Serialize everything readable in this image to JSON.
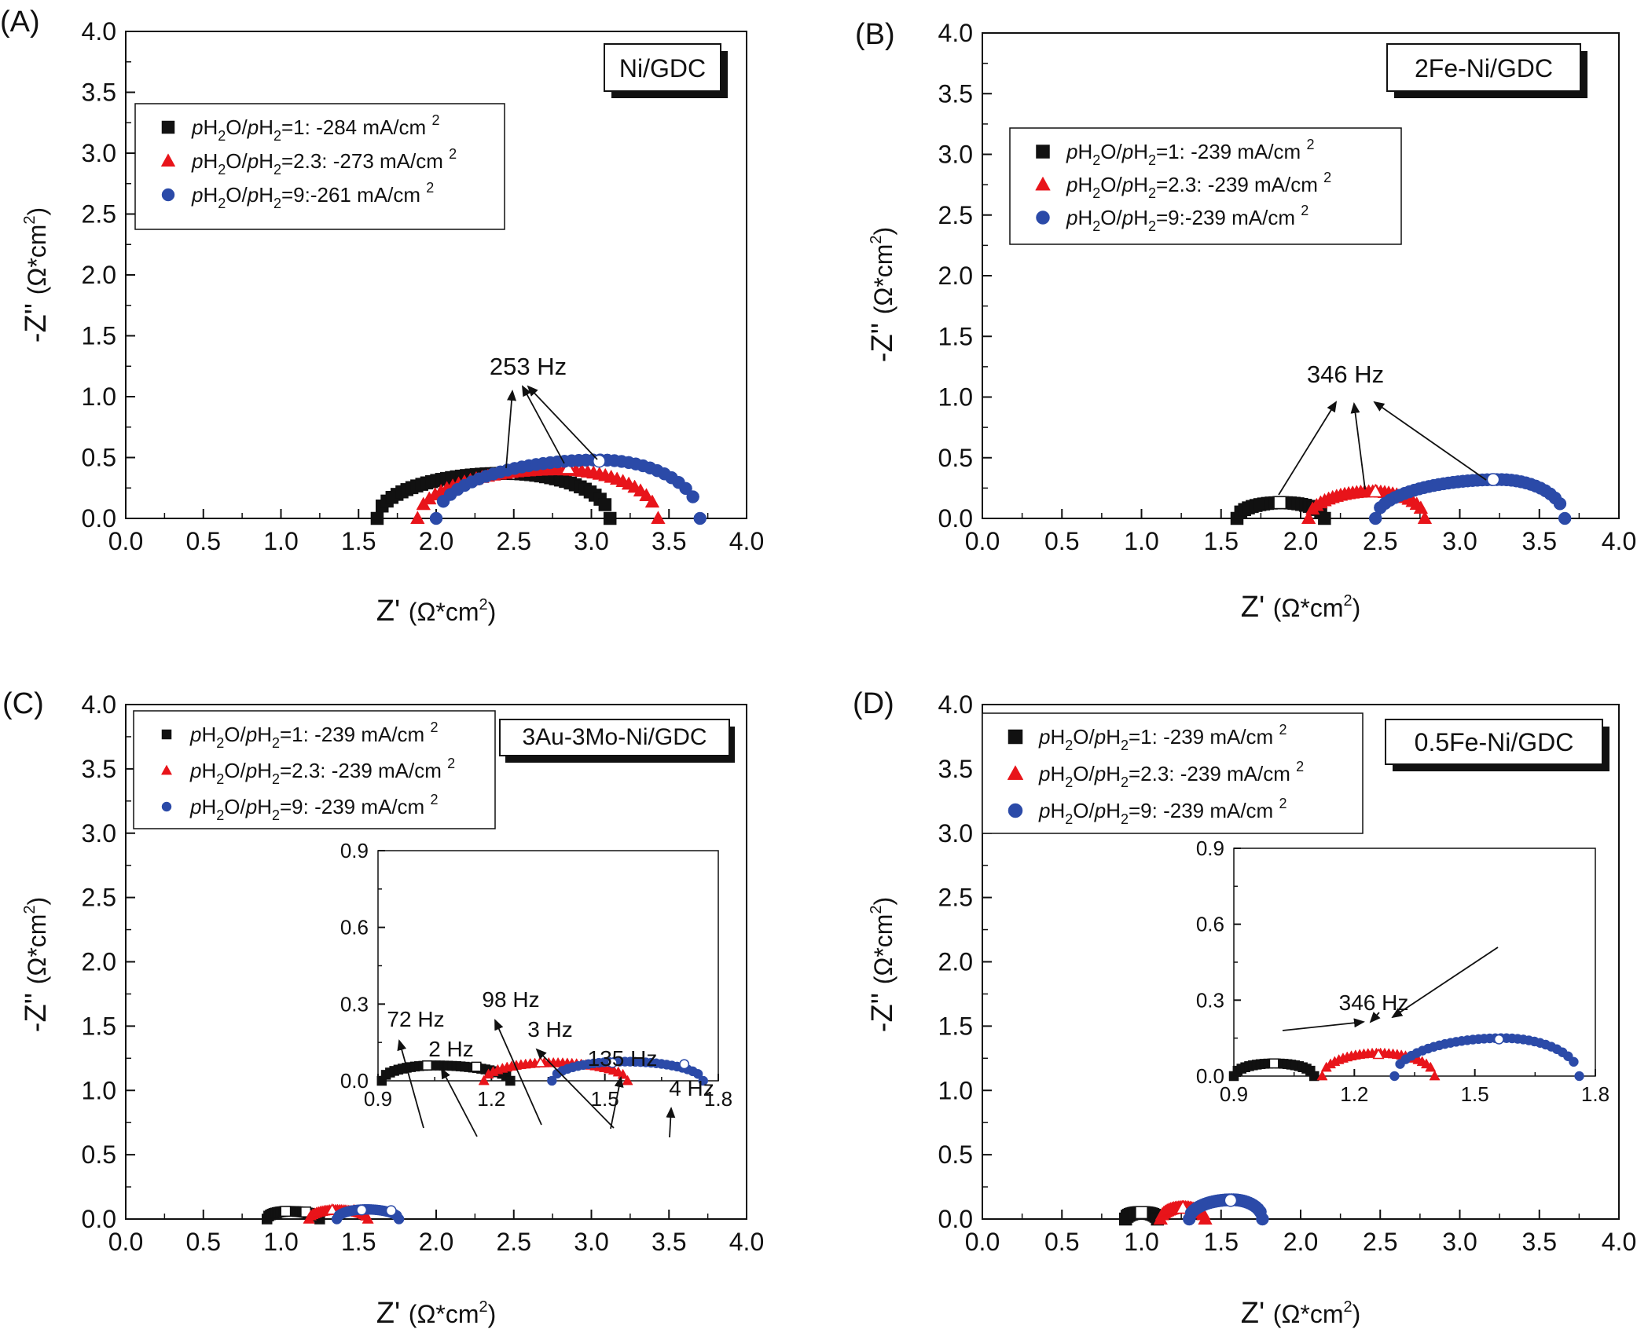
{
  "panels": [
    {
      "label": "(A)",
      "sample": "Ni/GDC",
      "sample_color": "#111111",
      "legend": [
        {
          "italic1": "p",
          "t1": "H",
          "s1": "2",
          "t2": "O/",
          "italic2": "p",
          "t3": "H",
          "s2": "2",
          "tail": "=1: -284 mA/cm ",
          "sup": "2",
          "marker": "square",
          "color": "#111111"
        },
        {
          "italic1": "p",
          "t1": "H",
          "s1": "2",
          "t2": "O/",
          "italic2": "p",
          "t3": "H",
          "s2": "2",
          "tail": "=2.3: -273 mA/cm ",
          "sup": "2",
          "marker": "triangle",
          "color": "#e8141a"
        },
        {
          "italic1": "p",
          "t1": "H",
          "s1": "2",
          "t2": "O/",
          "italic2": "p",
          "t3": "H",
          "s2": "2",
          "tail": "=9:-261 mA/cm ",
          "sup": "2",
          "marker": "circle",
          "color": "#2b4aa8"
        }
      ],
      "annotations": [
        {
          "text": "253 Hz"
        }
      ]
    },
    {
      "label": "(B)",
      "sample": "2Fe-Ni/GDC",
      "sample_color": "#e8141a",
      "legend": [
        {
          "italic1": "p",
          "t1": "H",
          "s1": "2",
          "t2": "O/",
          "italic2": "p",
          "t3": "H",
          "s2": "2",
          "tail": "=1: -239 mA/cm ",
          "sup": "2",
          "marker": "square",
          "color": "#111111"
        },
        {
          "italic1": "p",
          "t1": "H",
          "s1": "2",
          "t2": "O/",
          "italic2": "p",
          "t3": "H",
          "s2": "2",
          "tail": "=2.3: -239 mA/cm ",
          "sup": "2",
          "marker": "triangle",
          "color": "#e8141a"
        },
        {
          "italic1": "p",
          "t1": "H",
          "s1": "2",
          "t2": "O/",
          "italic2": "p",
          "t3": "H",
          "s2": "2",
          "tail": "=9:-239 mA/cm ",
          "sup": "2",
          "marker": "circle",
          "color": "#2b4aa8"
        }
      ],
      "annotations": [
        {
          "text": "346 Hz"
        }
      ]
    },
    {
      "label": "(C)",
      "sample": "3Au-3Mo-Ni/GDC",
      "sample_color": "#1a8a2e",
      "legend": [
        {
          "italic1": "p",
          "t1": "H",
          "s1": "2",
          "t2": "O/",
          "italic2": "p",
          "t3": "H",
          "s2": "2",
          "tail": "=1: -239 mA/cm ",
          "sup": "2",
          "marker": "square",
          "color": "#111111"
        },
        {
          "italic1": "p",
          "t1": "H",
          "s1": "2",
          "t2": "O/",
          "italic2": "p",
          "t3": "H",
          "s2": "2",
          "tail": "=2.3: -239 mA/cm ",
          "sup": "2",
          "marker": "triangle",
          "color": "#e8141a"
        },
        {
          "italic1": "p",
          "t1": "H",
          "s1": "2",
          "t2": "O/",
          "italic2": "p",
          "t3": "H",
          "s2": "2",
          "tail": "=9: -239 mA/cm ",
          "sup": "2",
          "marker": "circle",
          "color": "#2b4aa8"
        }
      ],
      "annotations": [
        {
          "text": "72 Hz"
        },
        {
          "text": "2 Hz"
        },
        {
          "text": "98 Hz"
        },
        {
          "text": "3 Hz"
        },
        {
          "text": "135 Hz"
        },
        {
          "text": "4 Hz"
        }
      ]
    },
    {
      "label": "(D)",
      "sample": "0.5Fe-Ni/GDC",
      "sample_color": "#f07a1a",
      "legend": [
        {
          "italic1": "p",
          "t1": "H",
          "s1": "2",
          "t2": "O/",
          "italic2": "p",
          "t3": "H",
          "s2": "2",
          "tail": "=1: -239 mA/cm ",
          "sup": "2",
          "marker": "square",
          "color": "#111111"
        },
        {
          "italic1": "p",
          "t1": "H",
          "s1": "2",
          "t2": "O/",
          "italic2": "p",
          "t3": "H",
          "s2": "2",
          "tail": "=2.3: -239 mA/cm ",
          "sup": "2",
          "marker": "triangle",
          "color": "#e8141a"
        },
        {
          "italic1": "p",
          "t1": "H",
          "s1": "2",
          "t2": "O/",
          "italic2": "p",
          "t3": "H",
          "s2": "2",
          "tail": "=9: -239 mA/cm ",
          "sup": "2",
          "marker": "circle",
          "color": "#2b4aa8"
        }
      ],
      "annotations": [
        {
          "text": "346 Hz"
        }
      ]
    }
  ],
  "axes": {
    "x_title": "Z'",
    "x_unit": "(Ω*cm",
    "x_unit_sup": "2",
    "x_unit_close": ")",
    "y_title": "-Z''",
    "y_unit": "(Ω*cm",
    "y_unit_sup": "2",
    "y_unit_close": ")"
  },
  "chart_data": [
    {
      "type": "scatter",
      "panel": "(A)",
      "xlim": [
        0,
        4
      ],
      "ylim": [
        0,
        4
      ],
      "xticks": [
        "0.0",
        "0.5",
        "1.0",
        "1.5",
        "2.0",
        "2.5",
        "3.0",
        "3.5",
        "4.0"
      ],
      "yticks": [
        "0.0",
        "0.5",
        "1.0",
        "1.5",
        "2.0",
        "2.5",
        "3.0",
        "3.5",
        "4.0"
      ],
      "series": [
        {
          "name": "pH2O/pH2=1: -284 mA/cm2",
          "marker": "square",
          "color": "#111111",
          "arc": {
            "x_start": 1.62,
            "x_end": 3.12,
            "peak_x": 2.45,
            "peak_y": 0.37,
            "n": 48
          },
          "marked_point": {
            "x": 2.47,
            "y": 0.37,
            "label": "253 Hz"
          }
        },
        {
          "name": "pH2O/pH2=2.3: -273 mA/cm2",
          "marker": "triangle",
          "color": "#e8141a",
          "arc": {
            "x_start": 1.88,
            "x_end": 3.43,
            "peak_x": 2.78,
            "peak_y": 0.4,
            "n": 42
          },
          "marked_point": {
            "x": 2.85,
            "y": 0.41,
            "label": "253 Hz"
          }
        },
        {
          "name": "pH2O/pH2=9:-261 mA/cm2",
          "marker": "circle",
          "color": "#2b4aa8",
          "arc": {
            "x_start": 2.0,
            "x_end": 3.7,
            "peak_x": 3.05,
            "peak_y": 0.48,
            "n": 38
          },
          "marked_point": {
            "x": 3.05,
            "y": 0.47,
            "label": "253 Hz"
          }
        }
      ]
    },
    {
      "type": "scatter",
      "panel": "(B)",
      "xlim": [
        0,
        4
      ],
      "ylim": [
        0,
        4
      ],
      "xticks": [
        "0.0",
        "0.5",
        "1.0",
        "1.5",
        "2.0",
        "2.5",
        "3.0",
        "3.5",
        "4.0"
      ],
      "yticks": [
        "0.0",
        "0.5",
        "1.0",
        "1.5",
        "2.0",
        "2.5",
        "3.0",
        "3.5",
        "4.0"
      ],
      "series": [
        {
          "name": "pH2O/pH2=1: -239 mA/cm2",
          "marker": "square",
          "color": "#111111",
          "arc": {
            "x_start": 1.6,
            "x_end": 2.15,
            "peak_x": 1.88,
            "peak_y": 0.13,
            "n": 24
          },
          "marked_point": {
            "x": 1.87,
            "y": 0.13,
            "label": "346 Hz"
          }
        },
        {
          "name": "pH2O/pH2=2.3: -239 mA/cm2",
          "marker": "triangle",
          "color": "#e8141a",
          "arc": {
            "x_start": 2.05,
            "x_end": 2.78,
            "peak_x": 2.45,
            "peak_y": 0.22,
            "n": 30
          },
          "marked_point": {
            "x": 2.47,
            "y": 0.22,
            "label": "346 Hz"
          }
        },
        {
          "name": "pH2O/pH2=9:-239 mA/cm2",
          "marker": "circle",
          "color": "#2b4aa8",
          "arc": {
            "x_start": 2.47,
            "x_end": 3.66,
            "peak_x": 3.25,
            "peak_y": 0.32,
            "n": 40
          },
          "marked_point": {
            "x": 3.21,
            "y": 0.32,
            "label": "346 Hz"
          }
        }
      ]
    },
    {
      "type": "scatter",
      "panel": "(C)",
      "xlim": [
        0,
        4
      ],
      "ylim": [
        0,
        4
      ],
      "xticks": [
        "0.0",
        "0.5",
        "1.0",
        "1.5",
        "2.0",
        "2.5",
        "3.0",
        "3.5",
        "4.0"
      ],
      "yticks": [
        "0.0",
        "0.5",
        "1.0",
        "1.5",
        "2.0",
        "2.5",
        "3.0",
        "3.5",
        "4.0"
      ],
      "inset": {
        "xlim": [
          0.9,
          1.8
        ],
        "ylim": [
          0,
          0.9
        ],
        "xticks": [
          "0.9",
          "1.2",
          "1.5",
          "1.8"
        ],
        "yticks": [
          "0.0",
          "0.3",
          "0.6",
          "0.9"
        ]
      },
      "series": [
        {
          "name": "pH2O/pH2=1: -239 mA/cm2",
          "marker": "square",
          "color": "#111111",
          "arc": {
            "x_start": 0.91,
            "x_end": 1.25,
            "peak_x": 1.05,
            "peak_y": 0.06,
            "n": 32
          },
          "marked_points": [
            {
              "x": 1.03,
              "y": 0.06,
              "label": "72 Hz"
            },
            {
              "x": 1.16,
              "y": 0.055,
              "label": "2 Hz"
            }
          ]
        },
        {
          "name": "pH2O/pH2=2.3: -239 mA/cm2",
          "marker": "triangle",
          "color": "#e8141a",
          "arc": {
            "x_start": 1.18,
            "x_end": 1.56,
            "peak_x": 1.36,
            "peak_y": 0.07,
            "n": 32
          },
          "marked_points": [
            {
              "x": 1.33,
              "y": 0.07,
              "label": "98 Hz"
            },
            {
              "x": 1.47,
              "y": 0.065,
              "label": "3 Hz"
            }
          ]
        },
        {
          "name": "pH2O/pH2=9: -239 mA/cm2",
          "marker": "circle",
          "color": "#2b4aa8",
          "arc": {
            "x_start": 1.36,
            "x_end": 1.76,
            "peak_x": 1.55,
            "peak_y": 0.075,
            "n": 30
          },
          "marked_points": [
            {
              "x": 1.52,
              "y": 0.07,
              "label": "135 Hz"
            },
            {
              "x": 1.71,
              "y": 0.065,
              "label": "4 Hz"
            }
          ]
        }
      ]
    },
    {
      "type": "scatter",
      "panel": "(D)",
      "xlim": [
        0,
        4
      ],
      "ylim": [
        0,
        4
      ],
      "xticks": [
        "0.0",
        "0.5",
        "1.0",
        "1.5",
        "2.0",
        "2.5",
        "3.0",
        "3.5",
        "4.0"
      ],
      "yticks": [
        "0.0",
        "0.5",
        "1.0",
        "1.5",
        "2.0",
        "2.5",
        "3.0",
        "3.5",
        "4.0"
      ],
      "inset": {
        "xlim": [
          0.9,
          1.8
        ],
        "ylim": [
          0,
          0.9
        ],
        "xticks": [
          "0.9",
          "1.2",
          "1.5",
          "1.8"
        ],
        "yticks": [
          "0.0",
          "0.3",
          "0.6",
          "0.9"
        ]
      },
      "series": [
        {
          "name": "pH2O/pH2=1: -239 mA/cm2",
          "marker": "square",
          "color": "#111111",
          "arc": {
            "x_start": 0.9,
            "x_end": 1.1,
            "peak_x": 1.0,
            "peak_y": 0.05,
            "n": 22
          },
          "marked_point": {
            "x": 1.0,
            "y": 0.05,
            "label": "346 Hz"
          }
        },
        {
          "name": "pH2O/pH2=2.3: -239 mA/cm2",
          "marker": "triangle",
          "color": "#e8141a",
          "arc": {
            "x_start": 1.12,
            "x_end": 1.4,
            "peak_x": 1.26,
            "peak_y": 0.09,
            "n": 28
          },
          "marked_point": {
            "x": 1.26,
            "y": 0.085,
            "label": "346 Hz"
          }
        },
        {
          "name": "pH2O/pH2=9: -239 mA/cm2",
          "marker": "circle",
          "color": "#2b4aa8",
          "arc": {
            "x_start": 1.3,
            "x_end": 1.76,
            "peak_x": 1.57,
            "peak_y": 0.15,
            "n": 34
          },
          "marked_point": {
            "x": 1.56,
            "y": 0.145,
            "label": "346 Hz"
          }
        }
      ]
    }
  ]
}
